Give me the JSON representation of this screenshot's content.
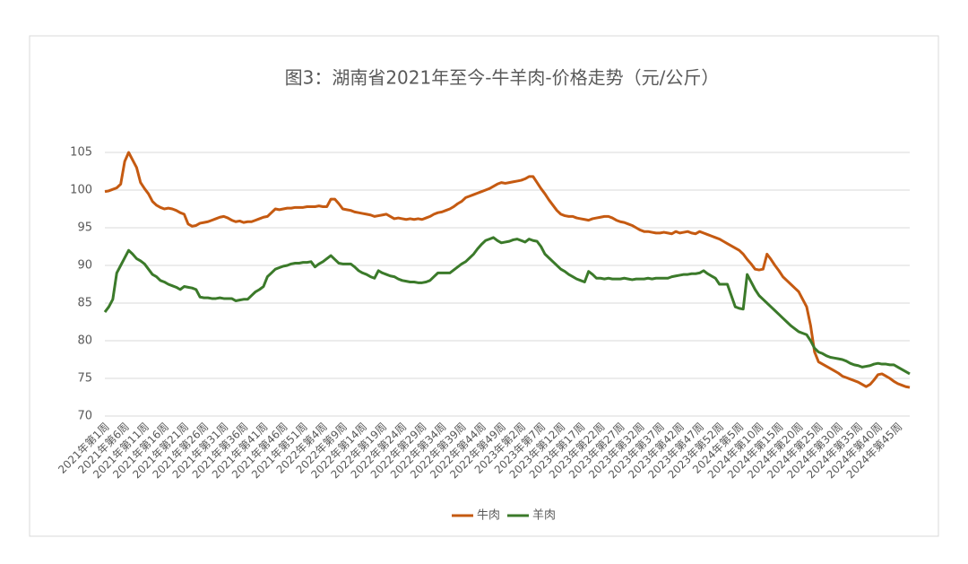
{
  "chart_data": {
    "type": "line",
    "title": "图3：湖南省2021年至今-牛羊肉-价格走势（元/公斤）",
    "categories": [
      "2021年第1周",
      null,
      null,
      null,
      null,
      "2021年第6周",
      null,
      null,
      null,
      null,
      "2021年第11周",
      null,
      null,
      null,
      null,
      "2021年第16周",
      null,
      null,
      null,
      null,
      "2021年第21周",
      null,
      null,
      null,
      null,
      "2021年第26周",
      null,
      null,
      null,
      null,
      "2021年第31周",
      null,
      null,
      null,
      null,
      "2021年第36周",
      null,
      null,
      null,
      null,
      "2021年第41周",
      null,
      null,
      null,
      null,
      "2021年第46周",
      null,
      null,
      null,
      null,
      "2021年第51周",
      null,
      null,
      null,
      null,
      "2022年第4周",
      null,
      null,
      null,
      null,
      "2022年第9周",
      null,
      null,
      null,
      null,
      "2022年第14周",
      null,
      null,
      null,
      null,
      "2022年第19周",
      null,
      null,
      null,
      null,
      "2022年第24周",
      null,
      null,
      null,
      null,
      "2022年第29周",
      null,
      null,
      null,
      null,
      "2022年第34周",
      null,
      null,
      null,
      null,
      "2022年第39周",
      null,
      null,
      null,
      null,
      "2022年第44周",
      null,
      null,
      null,
      null,
      "2022年第49周",
      null,
      null,
      null,
      null,
      "2023年第2周",
      null,
      null,
      null,
      null,
      "2023年第7周",
      null,
      null,
      null,
      null,
      "2023年第12周",
      null,
      null,
      null,
      null,
      "2023年第17周",
      null,
      null,
      null,
      null,
      "2023年第22周",
      null,
      null,
      null,
      null,
      "2023年第27周",
      null,
      null,
      null,
      null,
      "2023年第32周",
      null,
      null,
      null,
      null,
      "2023年第37周",
      null,
      null,
      null,
      null,
      "2023年第42周",
      null,
      null,
      null,
      null,
      "2023年第47周",
      null,
      null,
      null,
      null,
      "2023年第52周",
      null,
      null,
      null,
      null,
      "2024年第5周",
      null,
      null,
      null,
      null,
      "2024年第10周",
      null,
      null,
      null,
      null,
      "2024年第15周",
      null,
      null,
      null,
      null,
      "2024年第20周",
      null,
      null,
      null,
      null,
      "2024年第25周",
      null,
      null,
      null,
      null,
      "2024年第30周",
      null,
      null,
      null,
      null,
      "2024年第35周",
      null,
      null,
      null,
      null,
      "2024年第40周",
      null,
      null,
      null,
      null,
      "2024年第45周",
      null,
      null,
      null
    ],
    "series": [
      {
        "name": "牛肉",
        "color": "#c55a11",
        "values": [
          99.8,
          99.9,
          100.1,
          100.3,
          100.8,
          103.8,
          105,
          104,
          103,
          101,
          100.2,
          99.5,
          98.5,
          98,
          97.7,
          97.5,
          97.6,
          97.5,
          97.3,
          97,
          96.8,
          95.5,
          95.2,
          95.3,
          95.6,
          95.7,
          95.8,
          96,
          96.2,
          96.4,
          96.5,
          96.3,
          96,
          95.8,
          95.9,
          95.7,
          95.8,
          95.8,
          96,
          96.2,
          96.4,
          96.5,
          97,
          97.5,
          97.4,
          97.5,
          97.6,
          97.6,
          97.7,
          97.7,
          97.7,
          97.8,
          97.8,
          97.8,
          97.9,
          97.8,
          97.8,
          98.8,
          98.8,
          98.2,
          97.5,
          97.4,
          97.3,
          97.1,
          97,
          96.9,
          96.8,
          96.7,
          96.5,
          96.6,
          96.7,
          96.8,
          96.5,
          96.2,
          96.3,
          96.2,
          96.1,
          96.2,
          96.1,
          96.2,
          96.1,
          96.3,
          96.5,
          96.8,
          97,
          97.1,
          97.3,
          97.5,
          97.8,
          98.2,
          98.5,
          99,
          99.2,
          99.4,
          99.6,
          99.8,
          100,
          100.2,
          100.5,
          100.8,
          101,
          100.9,
          101,
          101.1,
          101.2,
          101.3,
          101.5,
          101.8,
          101.8,
          101,
          100.2,
          99.5,
          98.7,
          98,
          97.3,
          96.8,
          96.6,
          96.5,
          96.5,
          96.3,
          96.2,
          96.1,
          96,
          96.2,
          96.3,
          96.4,
          96.5,
          96.5,
          96.3,
          96,
          95.8,
          95.7,
          95.5,
          95.3,
          95,
          94.7,
          94.5,
          94.5,
          94.4,
          94.3,
          94.3,
          94.4,
          94.3,
          94.2,
          94.5,
          94.3,
          94.4,
          94.5,
          94.3,
          94.2,
          94.5,
          94.3,
          94.1,
          93.9,
          93.7,
          93.5,
          93.2,
          92.9,
          92.6,
          92.3,
          92,
          91.5,
          90.8,
          90.2,
          89.5,
          89.4,
          89.5,
          91.5,
          90.8,
          90,
          89.3,
          88.5,
          88,
          87.5,
          87,
          86.5,
          85.5,
          84.5,
          82,
          78.5,
          77.2,
          76.9,
          76.6,
          76.3,
          76,
          75.7,
          75.3,
          75.1,
          74.9,
          74.7,
          74.5,
          74.2,
          73.9,
          74.2,
          74.8,
          75.5,
          75.6,
          75.3,
          75,
          74.6,
          74.3,
          74.1,
          73.9,
          73.8
        ]
      },
      {
        "name": "羊肉",
        "color": "#3b7a2a",
        "values": [
          83.8,
          84.5,
          85.5,
          89,
          90,
          91,
          92,
          91.5,
          90.9,
          90.6,
          90.2,
          89.5,
          88.8,
          88.5,
          88,
          87.8,
          87.5,
          87.3,
          87.1,
          86.8,
          87.2,
          87.1,
          87,
          86.8,
          85.8,
          85.7,
          85.7,
          85.6,
          85.6,
          85.7,
          85.6,
          85.6,
          85.6,
          85.3,
          85.4,
          85.5,
          85.5,
          86,
          86.5,
          86.8,
          87.2,
          88.5,
          89,
          89.5,
          89.7,
          89.9,
          90,
          90.2,
          90.3,
          90.3,
          90.4,
          90.4,
          90.5,
          89.8,
          90.2,
          90.5,
          90.9,
          91.3,
          90.8,
          90.3,
          90.2,
          90.2,
          90.2,
          89.8,
          89.3,
          89,
          88.8,
          88.5,
          88.3,
          89.3,
          89,
          88.8,
          88.6,
          88.5,
          88.2,
          88,
          87.9,
          87.8,
          87.8,
          87.7,
          87.7,
          87.8,
          88,
          88.5,
          89,
          89,
          89,
          89,
          89.4,
          89.8,
          90.2,
          90.5,
          91,
          91.5,
          92.2,
          92.8,
          93.3,
          93.5,
          93.7,
          93.3,
          93,
          93.1,
          93.2,
          93.4,
          93.5,
          93.3,
          93.1,
          93.5,
          93.3,
          93.2,
          92.5,
          91.5,
          91,
          90.5,
          90,
          89.5,
          89.2,
          88.8,
          88.5,
          88.2,
          88,
          87.8,
          89.2,
          88.8,
          88.3,
          88.3,
          88.2,
          88.3,
          88.2,
          88.2,
          88.2,
          88.3,
          88.2,
          88.1,
          88.2,
          88.2,
          88.2,
          88.3,
          88.2,
          88.3,
          88.3,
          88.3,
          88.3,
          88.5,
          88.6,
          88.7,
          88.8,
          88.8,
          88.9,
          88.9,
          89,
          89.3,
          88.9,
          88.6,
          88.3,
          87.5,
          87.5,
          87.5,
          86,
          84.5,
          84.3,
          84.2,
          88.8,
          87.8,
          86.8,
          86,
          85.5,
          85,
          84.5,
          84,
          83.5,
          83,
          82.5,
          82,
          81.6,
          81.2,
          81,
          80.8,
          80,
          79,
          78.5,
          78.3,
          78,
          77.8,
          77.7,
          77.6,
          77.5,
          77.3,
          77,
          76.8,
          76.7,
          76.5,
          76.6,
          76.7,
          76.9,
          77,
          76.9,
          76.9,
          76.8,
          76.8,
          76.5,
          76.2,
          75.9,
          75.6
        ]
      }
    ],
    "ylim": [
      70,
      105
    ],
    "yticks": [
      70,
      75,
      80,
      85,
      90,
      95,
      100,
      105
    ],
    "grid": true,
    "legend": "bottom"
  }
}
